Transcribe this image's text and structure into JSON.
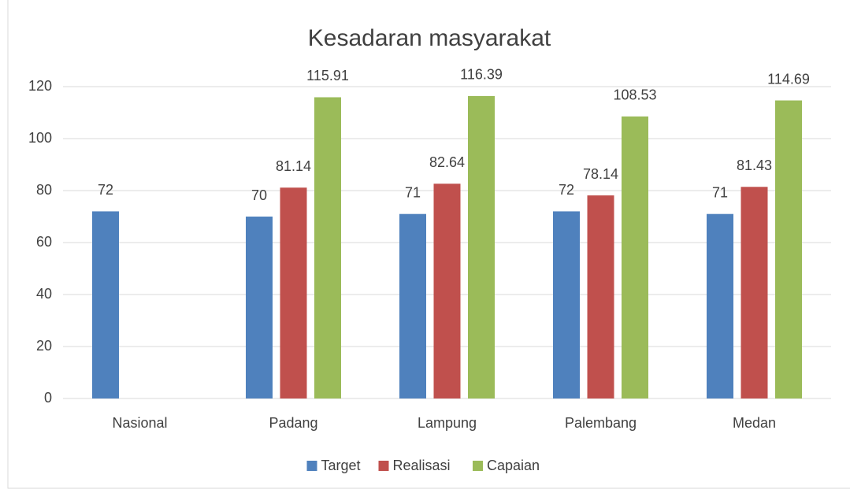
{
  "chart_data": {
    "type": "bar",
    "title": "Kesadaran masyarakat",
    "categories": [
      "Nasional",
      "Padang",
      "Lampung",
      "Palembang",
      "Medan"
    ],
    "series": [
      {
        "name": "Target",
        "color": "#4f81bd",
        "values": [
          72,
          70,
          71,
          72,
          71
        ]
      },
      {
        "name": "Realisasi",
        "color": "#c0504d",
        "values": [
          null,
          81.14,
          82.64,
          78.14,
          81.43
        ]
      },
      {
        "name": "Capaian",
        "color": "#9bbb59",
        "values": [
          null,
          115.91,
          116.39,
          108.53,
          114.69
        ]
      }
    ],
    "ylim": [
      0,
      120
    ],
    "yticks": [
      0,
      20,
      40,
      60,
      80,
      100,
      120
    ],
    "grid": true,
    "legend": "bottom"
  }
}
